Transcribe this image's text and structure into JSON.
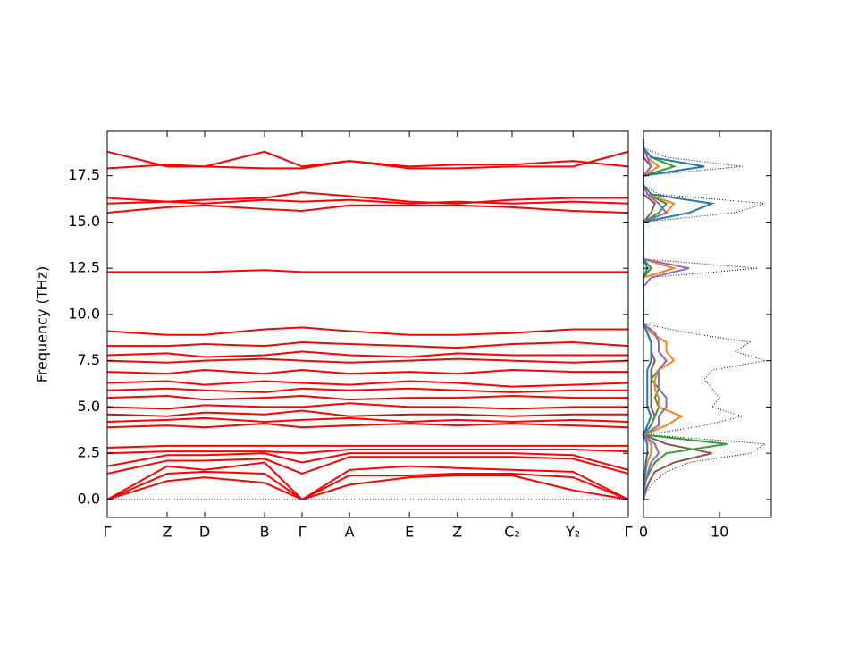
{
  "chart_data": [
    {
      "type": "line",
      "ylabel": "Frequency (THz)",
      "color": "#ff0000",
      "x": [
        0,
        0.115,
        0.187,
        0.302,
        0.374,
        0.465,
        0.58,
        0.672,
        0.777,
        0.894,
        1.0
      ],
      "xlim": [
        0,
        1.0
      ],
      "xticks": [
        {
          "value": 0,
          "label": "Γ"
        },
        {
          "value": 0.115,
          "label": "Z"
        },
        {
          "value": 0.187,
          "label": "D"
        },
        {
          "value": 0.302,
          "label": "B"
        },
        {
          "value": 0.374,
          "label": "Γ"
        },
        {
          "value": 0.465,
          "label": "A"
        },
        {
          "value": 0.58,
          "label": "E"
        },
        {
          "value": 0.672,
          "label": "Z"
        },
        {
          "value": 0.777,
          "label": "C₂"
        },
        {
          "value": 0.894,
          "label": "Y₂"
        },
        {
          "value": 1.0,
          "label": "Γ"
        }
      ],
      "ylim": [
        -0.97,
        19.9
      ],
      "yticks": [
        {
          "value": 0,
          "label": "0.0"
        },
        2.5,
        {
          "value": 5,
          "label": "5.0"
        },
        7.5,
        {
          "value": 10,
          "label": "10.0"
        },
        12.5,
        {
          "value": 15,
          "label": "15.0"
        },
        17.5
      ],
      "series": [
        {
          "values": [
            0,
            1.0,
            1.2,
            0.9,
            0,
            0.8,
            1.2,
            1.3,
            1.3,
            0.5,
            0
          ]
        },
        {
          "values": [
            0,
            1.4,
            1.5,
            1.4,
            0,
            1.3,
            1.3,
            1.4,
            1.4,
            1.2,
            0
          ]
        },
        {
          "values": [
            0,
            1.8,
            1.6,
            2.0,
            0,
            1.6,
            1.8,
            1.7,
            1.6,
            1.5,
            0
          ]
        },
        {
          "values": [
            1.4,
            2.1,
            2.1,
            2.2,
            1.4,
            2.3,
            2.3,
            2.3,
            2.3,
            2.2,
            1.4
          ]
        },
        {
          "values": [
            1.8,
            2.4,
            2.4,
            2.5,
            2.0,
            2.5,
            2.5,
            2.5,
            2.5,
            2.4,
            1.6
          ]
        },
        {
          "values": [
            2.5,
            2.6,
            2.6,
            2.6,
            2.5,
            2.7,
            2.7,
            2.7,
            2.7,
            2.7,
            2.6
          ]
        },
        {
          "values": [
            2.8,
            2.9,
            2.9,
            2.9,
            2.9,
            2.9,
            2.9,
            2.9,
            2.9,
            2.9,
            2.9
          ]
        },
        {
          "values": [
            3.9,
            4.0,
            3.9,
            4.1,
            3.9,
            4.0,
            4.1,
            4.0,
            4.1,
            4.0,
            3.9
          ]
        },
        {
          "values": [
            4.2,
            4.3,
            4.4,
            4.2,
            4.3,
            4.4,
            4.2,
            4.3,
            4.2,
            4.3,
            4.2
          ]
        },
        {
          "values": [
            4.6,
            4.5,
            4.7,
            4.6,
            4.8,
            4.5,
            4.6,
            4.6,
            4.5,
            4.6,
            4.6
          ]
        },
        {
          "values": [
            5.0,
            4.9,
            5.1,
            5.0,
            5.0,
            5.2,
            5.0,
            5.0,
            4.9,
            5.0,
            5.0
          ]
        },
        {
          "values": [
            5.5,
            5.6,
            5.4,
            5.5,
            5.6,
            5.4,
            5.5,
            5.5,
            5.6,
            5.5,
            5.5
          ]
        },
        {
          "values": [
            5.9,
            6.0,
            5.9,
            5.8,
            6.0,
            5.9,
            6.0,
            5.9,
            5.8,
            5.9,
            5.9
          ]
        },
        {
          "values": [
            6.3,
            6.4,
            6.2,
            6.4,
            6.3,
            6.2,
            6.4,
            6.3,
            6.1,
            6.2,
            6.3
          ]
        },
        {
          "values": [
            6.9,
            6.8,
            7.0,
            6.8,
            7.0,
            6.8,
            6.9,
            6.8,
            7.0,
            6.9,
            6.9
          ]
        },
        {
          "values": [
            7.5,
            7.4,
            7.5,
            7.6,
            7.5,
            7.4,
            7.5,
            7.6,
            7.5,
            7.4,
            7.5
          ]
        },
        {
          "values": [
            7.8,
            7.9,
            7.7,
            7.8,
            8.0,
            7.8,
            7.7,
            7.9,
            7.8,
            7.8,
            7.8
          ]
        },
        {
          "values": [
            8.3,
            8.3,
            8.4,
            8.3,
            8.5,
            8.4,
            8.3,
            8.2,
            8.4,
            8.5,
            8.3
          ]
        },
        {
          "values": [
            9.1,
            8.9,
            8.9,
            9.2,
            9.3,
            9.1,
            8.9,
            8.9,
            9.0,
            9.2,
            9.2
          ]
        },
        {
          "values": [
            12.3,
            12.3,
            12.3,
            12.4,
            12.3,
            12.3,
            12.3,
            12.3,
            12.3,
            12.3,
            12.3
          ]
        },
        {
          "values": [
            15.5,
            15.8,
            15.9,
            15.7,
            15.6,
            15.9,
            15.9,
            15.9,
            15.8,
            15.6,
            15.5
          ]
        },
        {
          "values": [
            16.0,
            16.1,
            16.0,
            16.2,
            16.1,
            16.2,
            16.0,
            16.1,
            16.0,
            16.1,
            16.0
          ]
        },
        {
          "values": [
            16.3,
            16.1,
            16.2,
            16.3,
            16.6,
            16.4,
            16.1,
            16.0,
            16.2,
            16.3,
            16.3
          ]
        },
        {
          "values": [
            17.9,
            18.1,
            18.0,
            17.9,
            17.9,
            18.3,
            18.0,
            18.1,
            18.1,
            18.3,
            18.0
          ]
        },
        {
          "values": [
            18.8,
            18.0,
            18.0,
            18.8,
            18.0,
            18.3,
            17.9,
            17.9,
            18.0,
            18.0,
            18.8
          ]
        },
        {
          "color": "#0000ff",
          "dash": "dotted",
          "values": [
            0,
            0,
            0,
            0,
            0,
            0,
            0,
            0,
            0,
            0,
            0
          ]
        }
      ]
    },
    {
      "type": "dos",
      "y": [
        0,
        0.5,
        1,
        1.5,
        2,
        2.5,
        3,
        3.5,
        4,
        4.5,
        5,
        5.5,
        6,
        6.5,
        7,
        7.5,
        8,
        8.5,
        9,
        9.5,
        10,
        10.5,
        11,
        11.5,
        12,
        12.5,
        13,
        13.5,
        14,
        14.5,
        15,
        15.5,
        16,
        16.5,
        17,
        17.5,
        18,
        18.5,
        19,
        19.5
      ],
      "xlim": [
        0,
        16.8
      ],
      "xticks": [
        0,
        10
      ],
      "series": [
        {
          "color": "#000000",
          "dash": "dotted",
          "values": [
            0,
            0.5,
            1.5,
            3,
            6,
            14,
            16,
            0.5,
            8,
            13,
            9,
            10,
            9,
            8,
            9,
            16,
            12,
            14,
            6,
            0,
            0,
            0,
            0,
            0,
            1,
            15,
            0,
            0,
            0,
            0,
            0,
            12,
            16,
            2,
            0,
            0,
            13,
            3,
            0,
            0
          ]
        },
        {
          "color": "#8c564b",
          "values": [
            0,
            0.3,
            0.8,
            1.5,
            4,
            9,
            3,
            0,
            1,
            1.5,
            1,
            1,
            1,
            1,
            1,
            1.5,
            1,
            1,
            0.5,
            0,
            0,
            0,
            0,
            0,
            0,
            1,
            0,
            0,
            0,
            0,
            0,
            1,
            1.5,
            0,
            0,
            0,
            1,
            0,
            0,
            0
          ]
        },
        {
          "color": "#2ca02c",
          "values": [
            0,
            0.1,
            0.3,
            0.8,
            1.5,
            3,
            11,
            0,
            1,
            1.5,
            2,
            1.5,
            2,
            1,
            2,
            3,
            2,
            2,
            1.5,
            0,
            0,
            0,
            0,
            0,
            0,
            1,
            0,
            0,
            0,
            0,
            0,
            2,
            3,
            0.5,
            0,
            0,
            4,
            1,
            0,
            0
          ]
        },
        {
          "color": "#ff7f0e",
          "values": [
            0,
            0,
            0.1,
            0.3,
            0.5,
            1,
            1,
            0,
            3,
            5,
            2,
            2,
            1.5,
            1.5,
            2,
            4,
            3,
            3,
            1,
            0,
            0,
            0,
            0,
            0,
            0,
            4,
            0,
            0,
            0,
            0,
            0,
            3,
            4,
            0.5,
            0,
            0,
            2,
            0.5,
            0,
            0
          ]
        },
        {
          "color": "#9467bd",
          "values": [
            0,
            0.1,
            0.3,
            0.6,
            1,
            2,
            1.5,
            0,
            2,
            2,
            3,
            3,
            2,
            2,
            2,
            3,
            2,
            2,
            1.5,
            0,
            0,
            0,
            0,
            0,
            1,
            6,
            0,
            0,
            0,
            0,
            0,
            3,
            2,
            0.5,
            0,
            0,
            1,
            0.5,
            0,
            0
          ]
        },
        {
          "color": "#1f77b4",
          "values": [
            0,
            0,
            0.1,
            0.2,
            0.3,
            0.5,
            0.5,
            0,
            0.5,
            1,
            0.5,
            0.5,
            0.5,
            0.5,
            0.5,
            1,
            1,
            1,
            0.5,
            0,
            0,
            0,
            0,
            0,
            0,
            0.5,
            0,
            0,
            0,
            0,
            0,
            6,
            9,
            1,
            0,
            0,
            8,
            1,
            0,
            0
          ]
        }
      ]
    }
  ]
}
